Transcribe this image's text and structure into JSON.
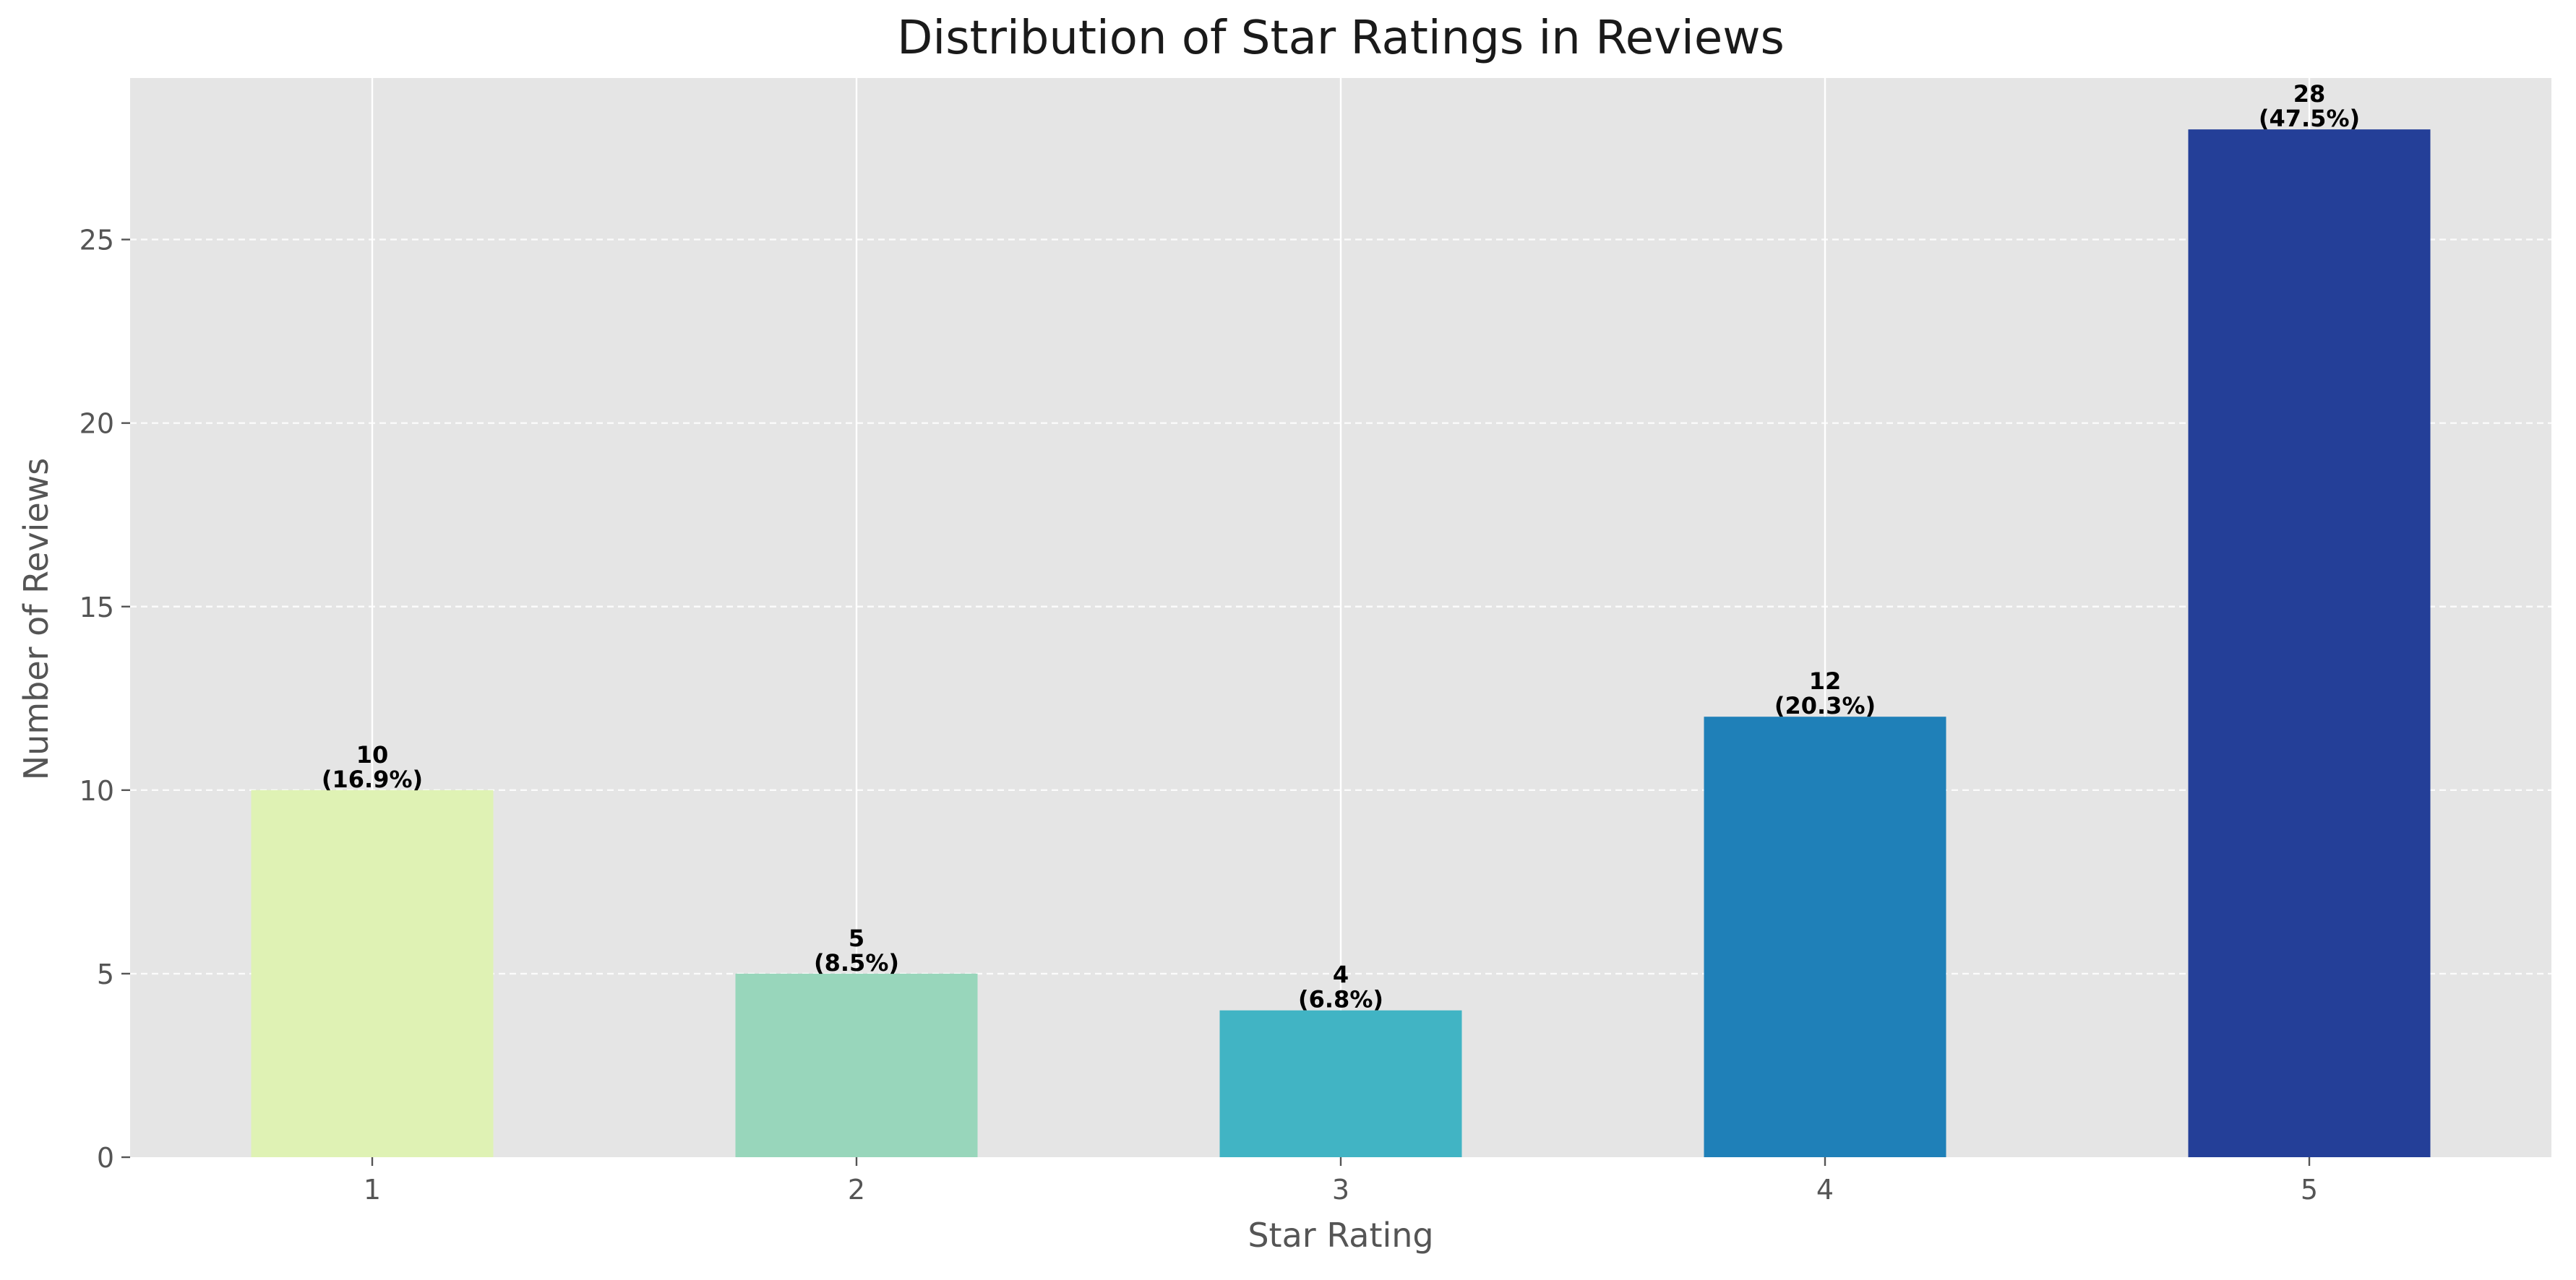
{
  "chart_data": {
    "type": "bar",
    "title": "Distribution of Star Ratings in Reviews",
    "xlabel": "Star Rating",
    "ylabel": "Number of Reviews",
    "categories": [
      "1",
      "2",
      "3",
      "4",
      "5"
    ],
    "values": [
      10,
      5,
      4,
      12,
      28
    ],
    "value_labels": [
      "10",
      "5",
      "4",
      "12",
      "28"
    ],
    "percent_labels": [
      "(16.9%)",
      "(8.5%)",
      "(6.8%)",
      "(20.3%)",
      "(47.5%)"
    ],
    "bar_colors": [
      "#dff2b4",
      "#98d6bb",
      "#41b4c4",
      "#1f80b8",
      "#243f98"
    ],
    "ylim": [
      0,
      29.4
    ],
    "yticks": [
      0,
      5,
      10,
      15,
      20,
      25
    ],
    "ytick_labels": [
      "0",
      "5",
      "10",
      "15",
      "20",
      "25"
    ],
    "grid": true,
    "legend": "none",
    "background_color": "#e5e5e5",
    "grid_color": "#ffffff"
  }
}
